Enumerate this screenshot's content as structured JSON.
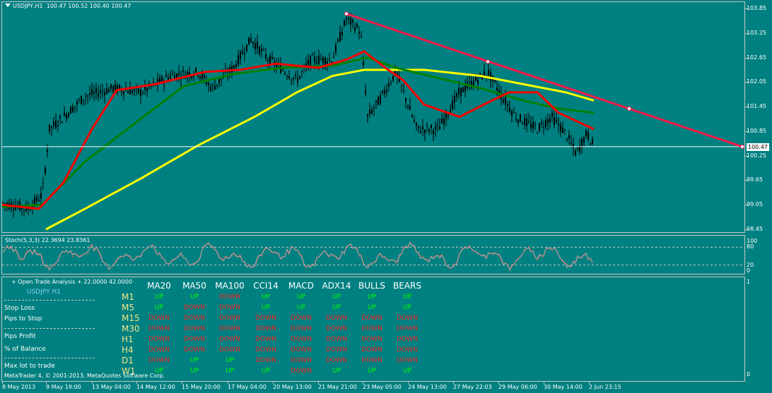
{
  "chart": {
    "title": "USDJPY,H1  100.47 100.52 100.40 100.47",
    "current_price": "100.47",
    "price_axis": [
      "103.85",
      "103.25",
      "102.65",
      "102.05",
      "101.45",
      "100.85",
      "100.25",
      "99.65",
      "99.05",
      "98.45"
    ],
    "price_range": [
      98.45,
      103.95
    ],
    "stoch_title": "Stoch(5,3,3) 22.3694 23.8361",
    "stoch_axis": [
      "100",
      "80",
      "20",
      "0"
    ],
    "panel_axis": [
      "1",
      "0"
    ],
    "time_axis": [
      "8 May 2013",
      "9 May 19:00",
      "13 May 04:00",
      "14 May 12:00",
      "15 May 20:00",
      "17 May 04:00",
      "20 May 13:00",
      "21 May 21:00",
      "23 May 05:00",
      "24 May 13:00",
      "27 May 22:03",
      "29 May 06:00",
      "30 May 14:00",
      "2 Jun 23:15"
    ],
    "colors": {
      "background": "#008080",
      "ma_fast": "#ff0000",
      "ma_mid": "#008000",
      "ma_slow": "#ffff00",
      "trendline": "#ff1a4d",
      "price_line": "#ffffff"
    },
    "indicator_title": "+ Open Trade Analysis + 22.0000 42.0000"
  },
  "panel": {
    "symbol": "USDJPY  H1",
    "labels": [
      "Stop Loss",
      "Pips to Stop",
      "Pips Profit",
      "% of Balance",
      "Max lot to trade"
    ],
    "copyright": "MetaTrader 4, © 2001-2013, MetaQuotes Software Corp.",
    "columns": [
      "MA20",
      "MA50",
      "MA100",
      "CCI14",
      "MACD",
      "ADX14",
      "BULLS",
      "BEARS"
    ],
    "rows": [
      {
        "tf": "M1",
        "values": [
          "UP",
          "UP",
          "DOWN",
          "UP",
          "UP",
          "UP",
          "UP",
          "UP"
        ]
      },
      {
        "tf": "M5",
        "values": [
          "UP",
          "DOWN",
          "DOWN",
          "UP",
          "UP",
          "UP",
          "UP",
          "UP"
        ]
      },
      {
        "tf": "M15",
        "values": [
          "DOWN",
          "DOWN",
          "DOWN",
          "DOWN",
          "DOWN",
          "DOWN",
          "DOWN",
          "DOWN"
        ]
      },
      {
        "tf": "M30",
        "values": [
          "DOWN",
          "DOWN",
          "DOWN",
          "DOWN",
          "DOWN",
          "DOWN",
          "DOWN",
          "DOWN"
        ]
      },
      {
        "tf": "H1",
        "values": [
          "DOWN",
          "DOWN",
          "DOWN",
          "DOWN",
          "DOWN",
          "DOWN",
          "DOWN",
          "DOWN"
        ]
      },
      {
        "tf": "H4",
        "values": [
          "DOWN",
          "DOWN",
          "DOWN",
          "DOWN",
          "DOWN",
          "DOWN",
          "DOWN",
          "DOWN"
        ]
      },
      {
        "tf": "D1",
        "values": [
          "DOWN",
          "UP",
          "UP",
          "DOWN",
          "DOWN",
          "DOWN",
          "DOWN",
          "DOWN"
        ]
      },
      {
        "tf": "W1",
        "values": [
          "UP",
          "UP",
          "UP",
          "UP",
          "DOWN",
          "UP",
          "UP",
          "UP"
        ]
      }
    ]
  }
}
